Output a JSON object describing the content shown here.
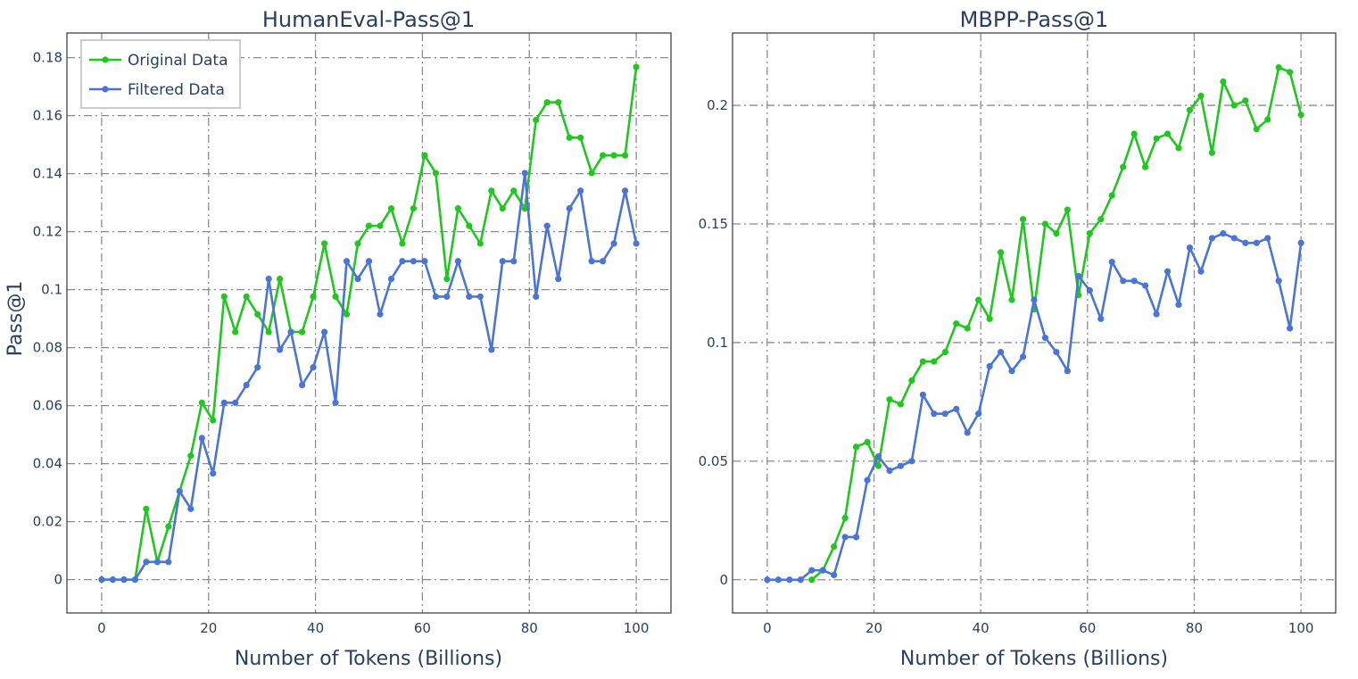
{
  "chart_data": [
    {
      "type": "line",
      "title": "HumanEval-Pass@1",
      "xlabel": "Number of Tokens (Billions)",
      "ylabel": "Pass@1",
      "xlim": [
        -6.5,
        106.5
      ],
      "ylim": [
        -0.0115,
        0.1885
      ],
      "xticks": [
        0,
        20,
        40,
        60,
        80,
        100
      ],
      "xtick_labels": [
        "0",
        "20",
        "40",
        "60",
        "80",
        "100"
      ],
      "yticks": [
        0,
        0.02,
        0.04,
        0.06,
        0.08,
        0.1,
        0.12,
        0.14,
        0.16,
        0.18
      ],
      "ytick_labels": [
        "0",
        "0.02",
        "0.04",
        "0.06",
        "0.08",
        "0.1",
        "0.12",
        "0.14",
        "0.16",
        "0.18"
      ],
      "grid": true,
      "legend_position": "top-left",
      "x": [
        0,
        2.08,
        4.17,
        6.25,
        8.33,
        10.42,
        12.5,
        14.58,
        16.67,
        18.75,
        20.83,
        22.92,
        25,
        27.08,
        29.17,
        31.25,
        33.33,
        35.42,
        37.5,
        39.58,
        41.67,
        43.75,
        45.83,
        47.92,
        50,
        52.08,
        54.17,
        56.25,
        58.33,
        60.42,
        62.5,
        64.58,
        66.67,
        68.75,
        70.83,
        72.92,
        75,
        77.08,
        79.17,
        81.25,
        83.33,
        85.42,
        87.5,
        89.58,
        91.67,
        93.75,
        95.83,
        97.92,
        100
      ],
      "series": [
        {
          "name": "Original Data",
          "color": "#1fc71f",
          "values": [
            0,
            0,
            0,
            0,
            0.0244,
            0.0061,
            0.0183,
            0.0305,
            0.0427,
            0.061,
            0.0549,
            0.0976,
            0.0854,
            0.0976,
            0.0915,
            0.0854,
            0.1037,
            0.0854,
            0.0854,
            0.0976,
            0.1159,
            0.0976,
            0.0915,
            0.1159,
            0.122,
            0.122,
            0.128,
            0.1159,
            0.128,
            0.1463,
            0.1402,
            0.1037,
            0.128,
            0.122,
            0.1159,
            0.1341,
            0.128,
            0.1341,
            0.128,
            0.1585,
            0.1646,
            0.1646,
            0.1524,
            0.1524,
            0.1402,
            0.1463,
            0.1463,
            0.1463,
            0.1768
          ]
        },
        {
          "name": "Filtered Data",
          "color": "#4a75d6",
          "values": [
            0,
            0,
            0,
            0,
            0.0061,
            0.0061,
            0.0061,
            0.0305,
            0.0244,
            0.0488,
            0.0366,
            0.061,
            0.061,
            0.0671,
            0.0732,
            0.1037,
            0.0793,
            0.0854,
            0.0671,
            0.0732,
            0.0854,
            0.061,
            0.1098,
            0.1037,
            0.1098,
            0.0915,
            0.1037,
            0.1098,
            0.1098,
            0.1098,
            0.0976,
            0.0976,
            0.1098,
            0.0976,
            0.0976,
            0.0793,
            0.1098,
            0.1098,
            0.1402,
            0.0976,
            0.122,
            0.1037,
            0.128,
            0.1341,
            0.1098,
            0.1098,
            0.1159,
            0.1341,
            0.1159
          ]
        }
      ]
    },
    {
      "type": "line",
      "title": "MBPP-Pass@1",
      "xlabel": "Number of Tokens (Billions)",
      "ylabel": "",
      "xlim": [
        -6.5,
        106.5
      ],
      "ylim": [
        -0.014,
        0.2305
      ],
      "xticks": [
        0,
        20,
        40,
        60,
        80,
        100
      ],
      "xtick_labels": [
        "0",
        "20",
        "40",
        "60",
        "80",
        "100"
      ],
      "yticks": [
        0,
        0.05,
        0.1,
        0.15,
        0.2
      ],
      "ytick_labels": [
        "0",
        "0.05",
        "0.1",
        "0.15",
        "0.2"
      ],
      "grid": true,
      "x": [
        0,
        2.08,
        4.17,
        6.25,
        8.33,
        10.42,
        12.5,
        14.58,
        16.67,
        18.75,
        20.83,
        22.92,
        25,
        27.08,
        29.17,
        31.25,
        33.33,
        35.42,
        37.5,
        39.58,
        41.67,
        43.75,
        45.83,
        47.92,
        50,
        52.08,
        54.17,
        56.25,
        58.33,
        60.42,
        62.5,
        64.58,
        66.67,
        68.75,
        70.83,
        72.92,
        75,
        77.08,
        79.17,
        81.25,
        83.33,
        85.42,
        87.5,
        89.58,
        91.67,
        93.75,
        95.83,
        97.92,
        100
      ],
      "series": [
        {
          "name": "Original Data",
          "color": "#1fc71f",
          "values": [
            null,
            null,
            null,
            null,
            0,
            0.004,
            0.014,
            0.026,
            0.056,
            0.058,
            0.048,
            0.076,
            0.074,
            0.084,
            0.092,
            0.092,
            0.096,
            0.108,
            0.106,
            0.118,
            0.11,
            0.138,
            0.118,
            0.152,
            0.114,
            0.15,
            0.146,
            0.156,
            0.12,
            0.146,
            0.152,
            0.162,
            0.174,
            0.188,
            0.174,
            0.186,
            0.188,
            0.182,
            0.198,
            0.204,
            0.18,
            0.21,
            0.2,
            0.202,
            0.19,
            0.194,
            0.216,
            0.214,
            0.196
          ]
        },
        {
          "name": "Filtered Data",
          "color": "#4a75d6",
          "values": [
            0,
            0,
            0,
            0,
            0.004,
            0.004,
            0.002,
            0.018,
            0.018,
            0.042,
            0.052,
            0.046,
            0.048,
            0.05,
            0.078,
            0.07,
            0.07,
            0.072,
            0.062,
            0.07,
            0.09,
            0.096,
            0.088,
            0.094,
            0.118,
            0.102,
            0.096,
            0.088,
            0.128,
            0.122,
            0.11,
            0.134,
            0.126,
            0.126,
            0.124,
            0.112,
            0.13,
            0.116,
            0.14,
            0.13,
            0.144,
            0.146,
            0.144,
            0.142,
            0.142,
            0.144,
            0.126,
            0.106,
            0.142
          ]
        }
      ]
    }
  ]
}
